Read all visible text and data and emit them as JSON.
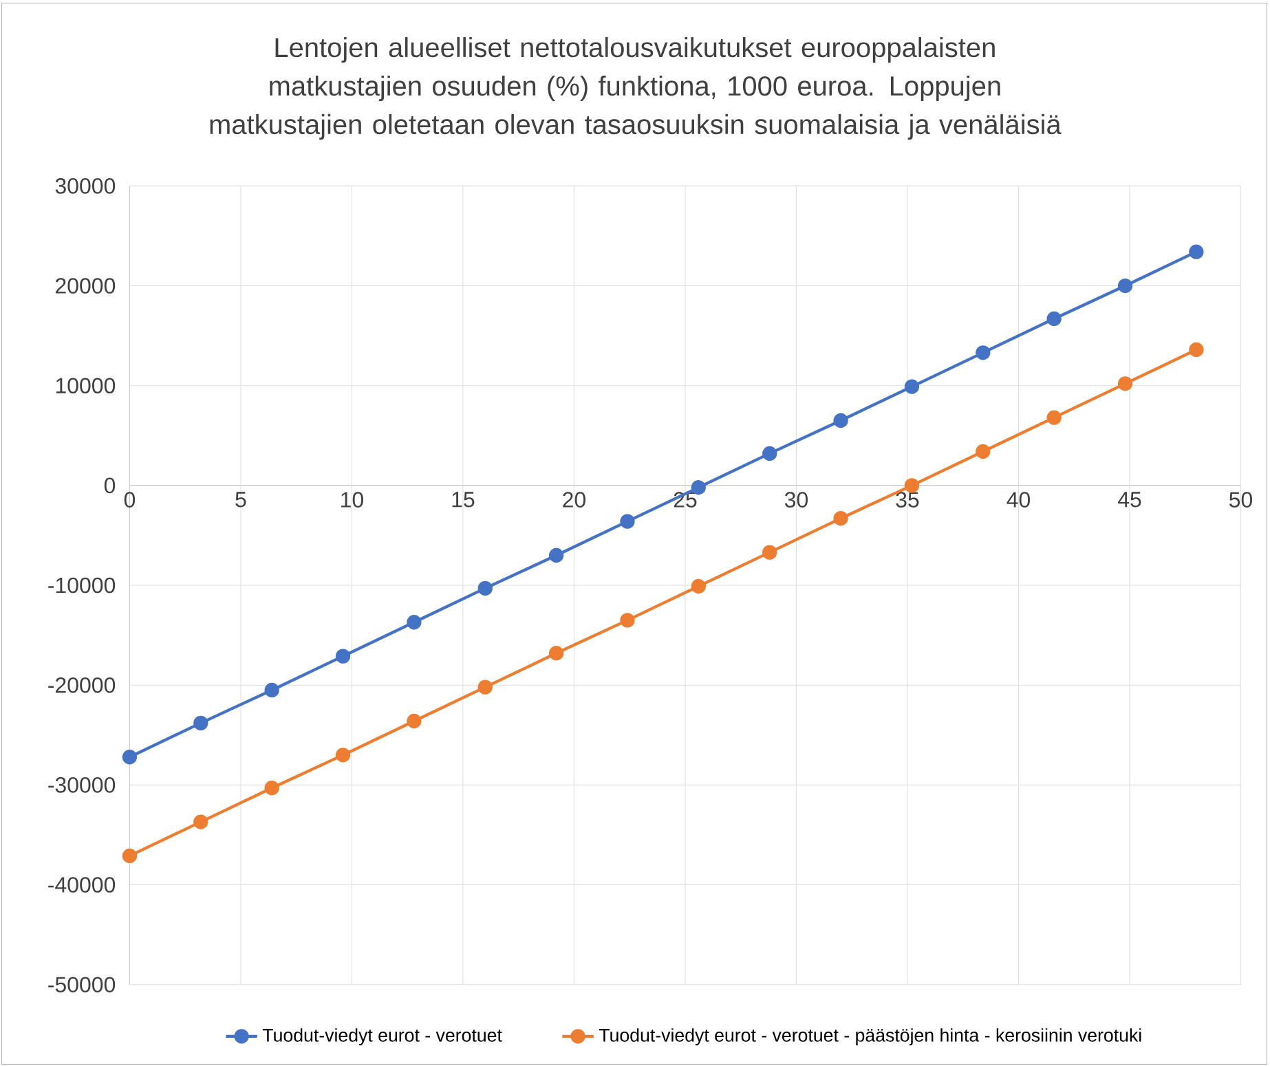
{
  "chart_data": {
    "type": "line",
    "title": "Lentojen alueelliset nettotalousvaikutukset eurooppalaisten matkustajien osuuden (%) funktiona, 1000 euroa. Loppujen matkustajien oletetaan olevan tasaosuuksin suomalaisia ja venäläisiä",
    "x": [
      0,
      3.2,
      6.4,
      9.6,
      12.8,
      16,
      19.2,
      22.4,
      25.6,
      28.8,
      32,
      35.2,
      38.4,
      41.6,
      44.8,
      48
    ],
    "series": [
      {
        "name": "Tuodut-viedyt eurot - verotuet",
        "color": "#4472c4",
        "values": [
          -27200,
          -23800,
          -20500,
          -17100,
          -13700,
          -10300,
          -7000,
          -3600,
          -200,
          3200,
          6500,
          9900,
          13300,
          16700,
          20000,
          23400
        ]
      },
      {
        "name": "Tuodut-viedyt eurot - verotuet - päästöjen hinta - kerosiinin verotuki",
        "color": "#ed7d31",
        "values": [
          -37100,
          -33700,
          -30300,
          -27000,
          -23600,
          -20200,
          -16800,
          -13500,
          -10100,
          -6700,
          -3300,
          0,
          3400,
          6800,
          10200,
          13600
        ]
      }
    ],
    "xlim": [
      0,
      50
    ],
    "xticks": [
      0,
      5,
      10,
      15,
      20,
      25,
      30,
      35,
      40,
      45,
      50
    ],
    "ylim": [
      -50000,
      30000
    ],
    "yticks": [
      -50000,
      -40000,
      -30000,
      -20000,
      -10000,
      0,
      10000,
      20000,
      30000
    ],
    "grid": true,
    "legend": "bottom",
    "marker": "circle",
    "line_style": "solid"
  }
}
